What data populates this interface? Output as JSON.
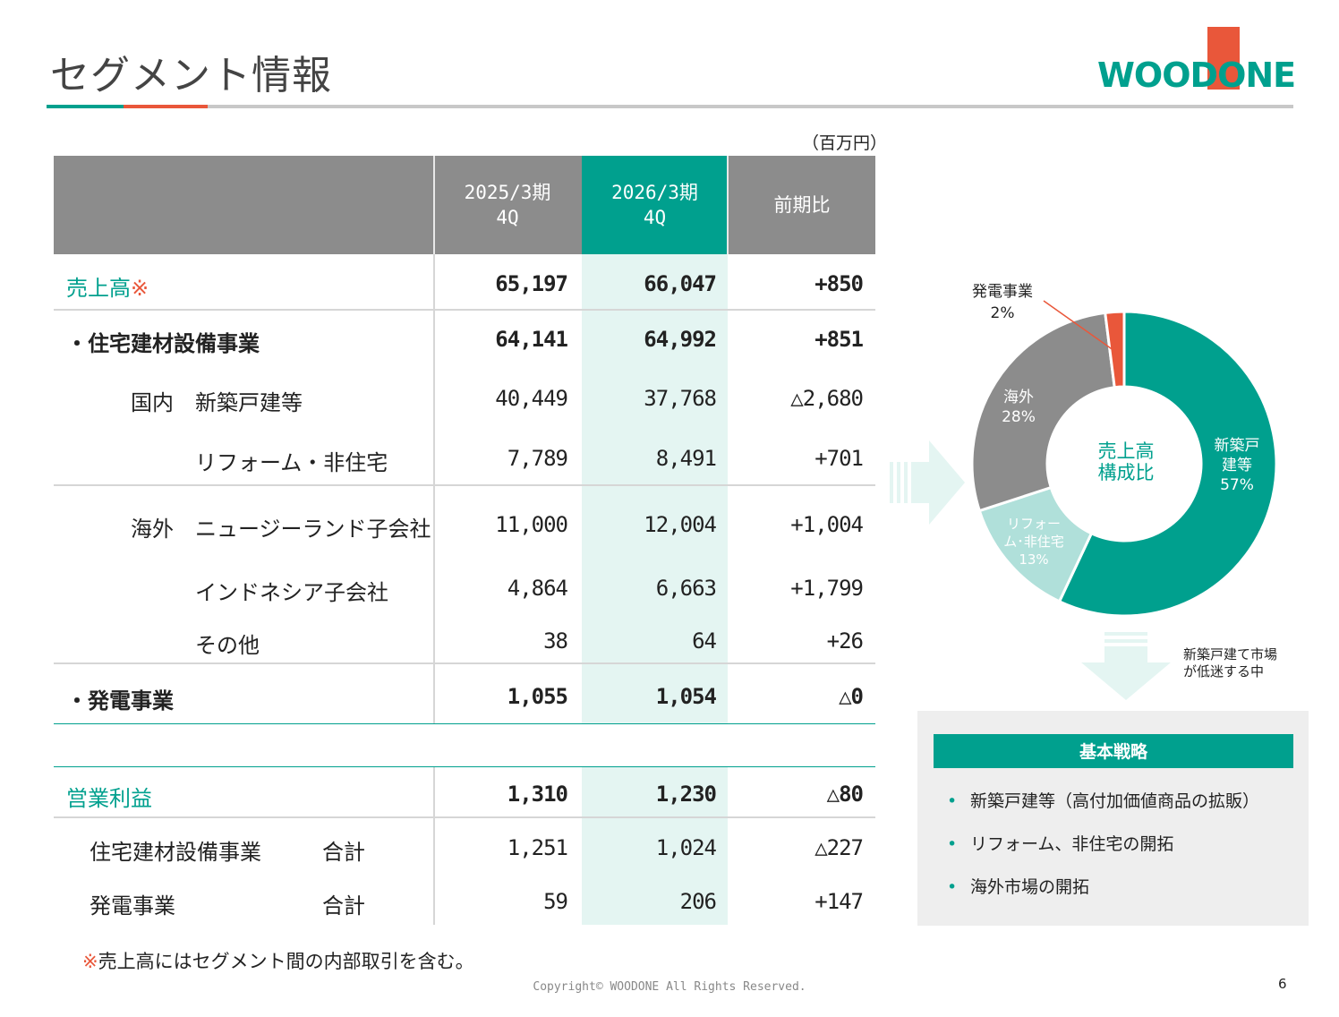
{
  "page": {
    "title": "セグメント情報",
    "unit": "（百万円）",
    "footnote_mark": "※",
    "footnote_text": "売上高にはセグメント間の内部取引を含む。",
    "copyright": "Copyright© WOODONE All Rights Reserved.",
    "page_number": "6"
  },
  "logo": {
    "text": "WOODONE",
    "colors": {
      "teal": "#00a08e",
      "orange": "#e9573a"
    }
  },
  "table": {
    "headers": {
      "col1": "2025/3期\n4Q",
      "col2": "2026/3期\n4Q",
      "col3": "前期比"
    },
    "rows": {
      "sales": {
        "label": "売上高",
        "mark": "※",
        "v1": "65,197",
        "v2": "66,047",
        "v3": "+850"
      },
      "housing": {
        "label": "・住宅建材設備事業",
        "v1": "64,141",
        "v2": "64,992",
        "v3": "+851"
      },
      "domestic_new": {
        "group": "国内",
        "label": "新築戸建等",
        "v1": "40,449",
        "v2": "37,768",
        "v3": "△2,680"
      },
      "reform": {
        "label": "リフォーム・非住宅",
        "v1": "7,789",
        "v2": "8,491",
        "v3": "+701"
      },
      "nz": {
        "group": "海外",
        "label": "ニュージーランド子会社",
        "v1": "11,000",
        "v2": "12,004",
        "v3": "+1,004"
      },
      "indonesia": {
        "label": "インドネシア子会社",
        "v1": "4,864",
        "v2": "6,663",
        "v3": "+1,799"
      },
      "other": {
        "label": "その他",
        "v1": "38",
        "v2": "64",
        "v3": "+26"
      },
      "power": {
        "label": "・発電事業",
        "v1": "1,055",
        "v2": "1,054",
        "v3": "△0"
      },
      "op_profit": {
        "label": "営業利益",
        "v1": "1,310",
        "v2": "1,230",
        "v3": "△80"
      },
      "op_housing": {
        "label": "住宅建材設備事業",
        "total": "合計",
        "v1": "1,251",
        "v2": "1,024",
        "v3": "△227"
      },
      "op_power": {
        "label": "発電事業",
        "total": "合計",
        "v1": "59",
        "v2": "206",
        "v3": "+147"
      }
    }
  },
  "chart_data": {
    "type": "pie",
    "center_label": "売上高\n構成比",
    "slices": [
      {
        "name": "新築戸\n建等",
        "pct_label": "57%",
        "value": 57,
        "color": "#00a08e"
      },
      {
        "name": "リフォー\nム･非住宅",
        "pct_label": "13%",
        "value": 13,
        "color": "#b0e0da"
      },
      {
        "name": "海外",
        "pct_label": "28%",
        "value": 28,
        "color": "#8c8c8c"
      },
      {
        "name": "発電事業",
        "pct_label": "2%",
        "value": 2,
        "color": "#e9573a"
      }
    ]
  },
  "arrow_note": "新築戸建て市場\nが低迷する中",
  "strategy": {
    "title": "基本戦略",
    "bullet": "•",
    "items": [
      "新築戸建等（高付加価値商品の拡販）",
      "リフォーム、非住宅の開拓",
      "海外市場の開拓"
    ]
  }
}
